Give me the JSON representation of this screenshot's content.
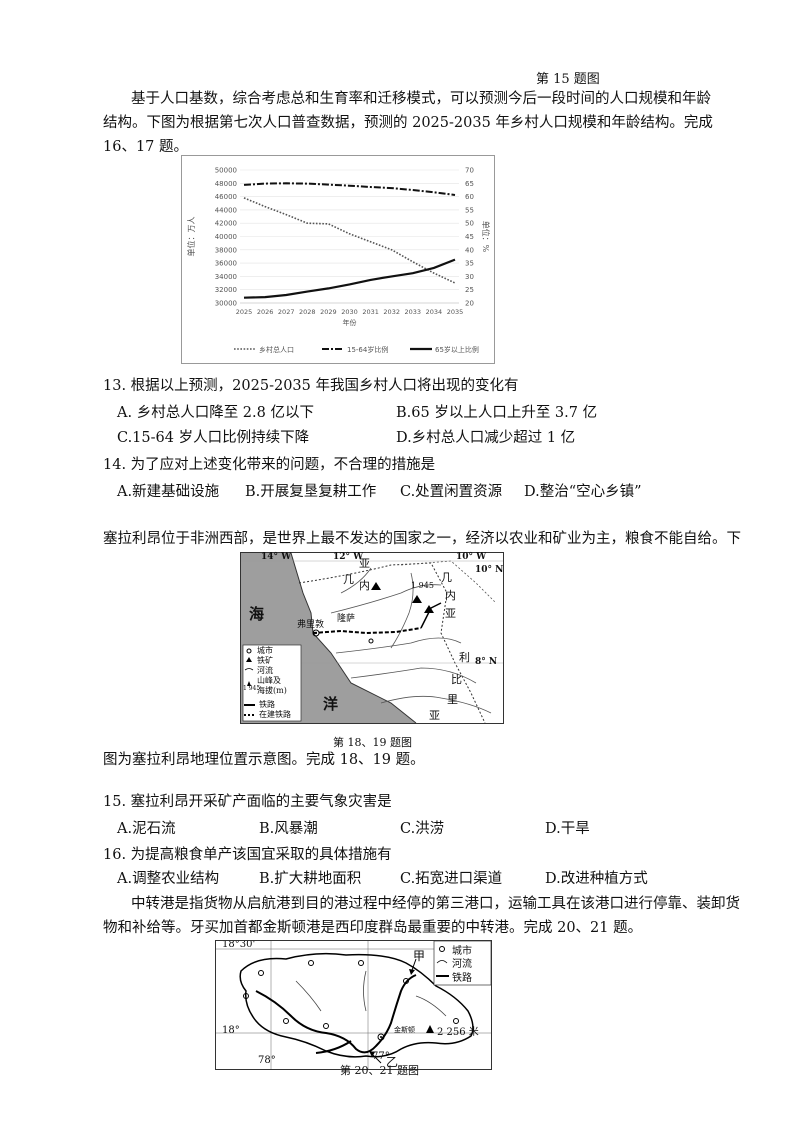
{
  "top_caption": "第 15 题图",
  "intro16": {
    "l1": "基于人口基数，综合考虑总和生育率和迁移模式，可以预测今后一段时间的人口规模和年龄",
    "l2": "结构。下图为根据第七次人口普查数据，预测的  2025-2035  年乡村人口规模和年龄结构。完成",
    "l3": "16、17 题。"
  },
  "chart_data": {
    "type": "line",
    "x": [
      "2025",
      "2026",
      "2027",
      "2028",
      "2029",
      "2030",
      "2031",
      "2032",
      "2033",
      "2034",
      "2035"
    ],
    "xlabel": "年份",
    "ylabel_left": "单位：万人",
    "ylabel_right": "单位：%",
    "ylim_left": [
      30000,
      50000
    ],
    "ylim_right": [
      20,
      70
    ],
    "yticks_left": [
      "30000",
      "32000",
      "34000",
      "36000",
      "38000",
      "40000",
      "42000",
      "44000",
      "46000",
      "48000",
      "50000"
    ],
    "yticks_right": [
      "20",
      "25",
      "30",
      "35",
      "40",
      "45",
      "50",
      "55",
      "60",
      "65",
      "70"
    ],
    "series": [
      {
        "name": "乡村总人口",
        "axis": "left",
        "values": [
          45800,
          44500,
          43300,
          42000,
          41900,
          40400,
          39200,
          38000,
          36200,
          34500,
          33000
        ]
      },
      {
        "name": "15-64岁比例",
        "axis": "right",
        "values": [
          64.4,
          64.9,
          65.0,
          64.9,
          64.5,
          64.1,
          63.6,
          63.2,
          62.5,
          61.6,
          60.6
        ]
      },
      {
        "name": "65岁以上比例",
        "axis": "right",
        "values": [
          22.0,
          22.2,
          23.0,
          24.3,
          25.5,
          27.0,
          28.7,
          30.0,
          31.2,
          33.2,
          36.3
        ]
      }
    ],
    "legend_position": "bottom",
    "grid": true
  },
  "q13": {
    "stem": "13.  根据以上预测，2025-2035 年我国乡村人口将出现的变化有",
    "a": "A.  乡村总人口降至  2.8 亿以下",
    "b": "B.65 岁以上人口上升至  3.7 亿",
    "c": "C.15-64  岁人口比例持续下降",
    "d": "D.乡村总人口减少超过  1 亿"
  },
  "q14": {
    "stem": "14.  为了应对上述变化带来的问题，不合理的措施是",
    "a": "A.新建基础设施",
    "b": "B.开展复垦复耕工作",
    "c": "C.处置闲置资源",
    "d": "D.整治“空心乡镇”"
  },
  "intro18": {
    "l1": "塞拉利昂位于非洲西部，是世界上最不发达的国家之一，经济以农业和矿业为主，粮食不能自给。下",
    "l2": "图为塞拉利昂地理位置示意图。完成  18、19 题。"
  },
  "map1": {
    "caption": "第 18、19 题图",
    "lon_labels": [
      "14° W",
      "12° W",
      "10° W"
    ],
    "lat_labels": [
      "10° N",
      "8° N"
    ],
    "sea_label": "海",
    "ocean_label": "洋",
    "country_labels": [
      "几",
      "内",
      "亚",
      "几",
      "内",
      "亚",
      "利",
      "比",
      "里",
      "亚"
    ],
    "place_labels": {
      "capital": "弗里敦",
      "river": "隆萨",
      "peak": "1 945"
    },
    "legend": [
      "城市",
      "铁矿",
      "河流",
      "山峰及",
      "海拔(m)",
      "铁路",
      "在建铁路"
    ],
    "legend_peak": "1 945"
  },
  "q15": {
    "stem": "15.  塞拉利昂开采矿产面临的主要气象灾害是",
    "a": "A.泥石流",
    "b": "B.风暴潮",
    "c": "C.洪涝",
    "d": "D.干旱"
  },
  "q16": {
    "stem": "16.  为提高粮食单产该国宜采取的具体措施有",
    "a": "A.调整农业结构",
    "b": "B.扩大耕地面积",
    "c": "C.拓宽进口渠道",
    "d": "D.改进种植方式"
  },
  "intro20": {
    "l1": "中转港是指货物从启航港到目的港过程中经停的第三港口，运输工具在该港口进行停靠、装卸货",
    "l2": "物和补给等。牙买加首都金斯顿港是西印度群岛最重要的中转港。完成  20、21 题。"
  },
  "map2": {
    "lat_top": "18°30'",
    "lat_mid": "18°",
    "lon_a": "78°",
    "lon_b": "77°",
    "label_jia": "甲",
    "label_yi": "乙",
    "peak_name": "金斯顿",
    "peak_height": "2 256 米",
    "legend": [
      "城市",
      "河流",
      "铁路"
    ],
    "caption": "第 20、21 题图"
  }
}
